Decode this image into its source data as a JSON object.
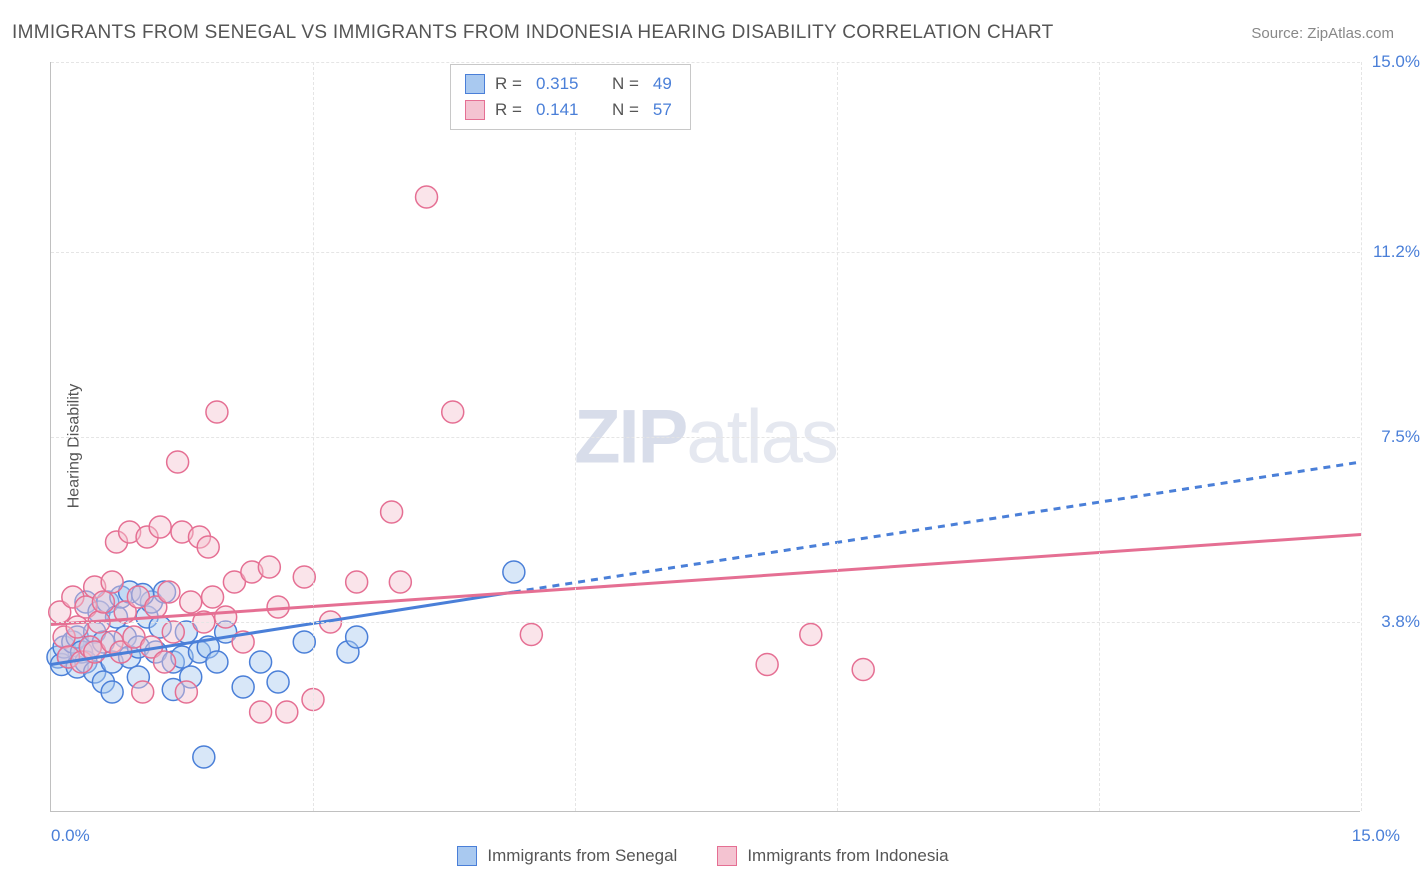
{
  "header": {
    "title": "IMMIGRANTS FROM SENEGAL VS IMMIGRANTS FROM INDONESIA HEARING DISABILITY CORRELATION CHART",
    "source_label": "Source:",
    "source_name": "ZipAtlas.com"
  },
  "axes": {
    "y_label": "Hearing Disability",
    "x_min_label": "0.0%",
    "x_max_label": "15.0%",
    "y_ticks": [
      {
        "value": 3.8,
        "label": "3.8%"
      },
      {
        "value": 7.5,
        "label": "7.5%"
      },
      {
        "value": 11.2,
        "label": "11.2%"
      },
      {
        "value": 15.0,
        "label": "15.0%"
      }
    ],
    "x_grid_values": [
      3.0,
      6.0,
      9.0,
      12.0,
      15.0
    ]
  },
  "watermark": {
    "part1": "ZIP",
    "part2": "atlas"
  },
  "legend_top": {
    "series": [
      {
        "swatch_fill": "#a9c9f0",
        "swatch_border": "#4a7fd8",
        "r_label": "R =",
        "r_value": "0.315",
        "n_label": "N =",
        "n_value": "49"
      },
      {
        "swatch_fill": "#f4c3d1",
        "swatch_border": "#e56f93",
        "r_label": "R =",
        "r_value": "0.141",
        "n_label": "N =",
        "n_value": "57"
      }
    ]
  },
  "legend_bottom": {
    "items": [
      {
        "swatch_fill": "#a9c9f0",
        "swatch_border": "#4a7fd8",
        "label": "Immigrants from Senegal"
      },
      {
        "swatch_fill": "#f4c3d1",
        "swatch_border": "#e56f93",
        "label": "Immigrants from Indonesia"
      }
    ]
  },
  "chart": {
    "type": "scatter",
    "xlim": [
      0,
      15
    ],
    "ylim": [
      0,
      15
    ],
    "background_color": "#ffffff",
    "grid_color": "#e5e5e5",
    "marker_radius": 11,
    "marker_stroke_width": 1.5,
    "marker_fill_opacity": 0.45,
    "series": [
      {
        "name": "senegal",
        "color": "#4a7fd8",
        "fill": "#a9c9f0",
        "points": [
          [
            0.08,
            3.1
          ],
          [
            0.12,
            2.95
          ],
          [
            0.15,
            3.3
          ],
          [
            0.2,
            3.1
          ],
          [
            0.25,
            3.4
          ],
          [
            0.3,
            2.9
          ],
          [
            0.3,
            3.5
          ],
          [
            0.35,
            3.2
          ],
          [
            0.4,
            3.0
          ],
          [
            0.4,
            4.2
          ],
          [
            0.45,
            3.3
          ],
          [
            0.5,
            2.8
          ],
          [
            0.5,
            3.6
          ],
          [
            0.55,
            4.0
          ],
          [
            0.6,
            2.6
          ],
          [
            0.6,
            3.4
          ],
          [
            0.65,
            4.2
          ],
          [
            0.7,
            3.0
          ],
          [
            0.7,
            2.4
          ],
          [
            0.75,
            3.9
          ],
          [
            0.8,
            4.3
          ],
          [
            0.85,
            3.5
          ],
          [
            0.9,
            3.1
          ],
          [
            0.9,
            4.4
          ],
          [
            1.0,
            3.3
          ],
          [
            1.0,
            2.7
          ],
          [
            1.1,
            3.9
          ],
          [
            1.15,
            4.2
          ],
          [
            1.2,
            3.2
          ],
          [
            1.25,
            3.7
          ],
          [
            1.3,
            4.4
          ],
          [
            1.4,
            3.0
          ],
          [
            1.4,
            2.45
          ],
          [
            1.5,
            3.1
          ],
          [
            1.55,
            3.6
          ],
          [
            1.6,
            2.7
          ],
          [
            1.7,
            3.2
          ],
          [
            1.75,
            1.1
          ],
          [
            1.8,
            3.3
          ],
          [
            1.9,
            3.0
          ],
          [
            2.0,
            3.6
          ],
          [
            2.2,
            2.5
          ],
          [
            2.4,
            3.0
          ],
          [
            2.6,
            2.6
          ],
          [
            2.9,
            3.4
          ],
          [
            3.4,
            3.2
          ],
          [
            3.5,
            3.5
          ],
          [
            5.3,
            4.8
          ],
          [
            1.05,
            4.35
          ]
        ],
        "trend": {
          "solid": {
            "x1": 0,
            "y1": 2.95,
            "x2": 5.3,
            "y2": 4.4
          },
          "dashed": {
            "x1": 5.3,
            "y1": 4.4,
            "x2": 15.0,
            "y2": 7.0
          },
          "stroke_width": 3,
          "dash": "7 6"
        }
      },
      {
        "name": "indonesia",
        "color": "#e56f93",
        "fill": "#f4c3d1",
        "points": [
          [
            0.1,
            4.0
          ],
          [
            0.15,
            3.5
          ],
          [
            0.2,
            3.1
          ],
          [
            0.25,
            4.3
          ],
          [
            0.3,
            3.7
          ],
          [
            0.35,
            3.0
          ],
          [
            0.4,
            4.1
          ],
          [
            0.45,
            3.3
          ],
          [
            0.5,
            4.5
          ],
          [
            0.5,
            3.2
          ],
          [
            0.55,
            3.8
          ],
          [
            0.6,
            4.2
          ],
          [
            0.7,
            3.4
          ],
          [
            0.7,
            4.6
          ],
          [
            0.75,
            5.4
          ],
          [
            0.8,
            3.2
          ],
          [
            0.85,
            4.0
          ],
          [
            0.9,
            5.6
          ],
          [
            0.95,
            3.5
          ],
          [
            1.0,
            4.3
          ],
          [
            1.05,
            2.4
          ],
          [
            1.1,
            5.5
          ],
          [
            1.15,
            3.3
          ],
          [
            1.2,
            4.1
          ],
          [
            1.25,
            5.7
          ],
          [
            1.3,
            3.0
          ],
          [
            1.35,
            4.4
          ],
          [
            1.4,
            3.6
          ],
          [
            1.45,
            7.0
          ],
          [
            1.5,
            5.6
          ],
          [
            1.55,
            2.4
          ],
          [
            1.6,
            4.2
          ],
          [
            1.7,
            5.5
          ],
          [
            1.75,
            3.8
          ],
          [
            1.8,
            5.3
          ],
          [
            1.85,
            4.3
          ],
          [
            1.9,
            8.0
          ],
          [
            2.0,
            3.9
          ],
          [
            2.1,
            4.6
          ],
          [
            2.2,
            3.4
          ],
          [
            2.3,
            4.8
          ],
          [
            2.4,
            2.0
          ],
          [
            2.5,
            4.9
          ],
          [
            2.6,
            4.1
          ],
          [
            2.7,
            2.0
          ],
          [
            2.9,
            4.7
          ],
          [
            3.0,
            2.25
          ],
          [
            3.2,
            3.8
          ],
          [
            3.5,
            4.6
          ],
          [
            3.9,
            6.0
          ],
          [
            4.0,
            4.6
          ],
          [
            4.3,
            12.3
          ],
          [
            4.6,
            8.0
          ],
          [
            5.5,
            3.55
          ],
          [
            8.2,
            2.95
          ],
          [
            8.7,
            3.55
          ],
          [
            9.3,
            2.85
          ]
        ],
        "trend": {
          "solid": {
            "x1": 0,
            "y1": 3.75,
            "x2": 15.0,
            "y2": 5.55
          },
          "stroke_width": 3
        }
      }
    ]
  }
}
